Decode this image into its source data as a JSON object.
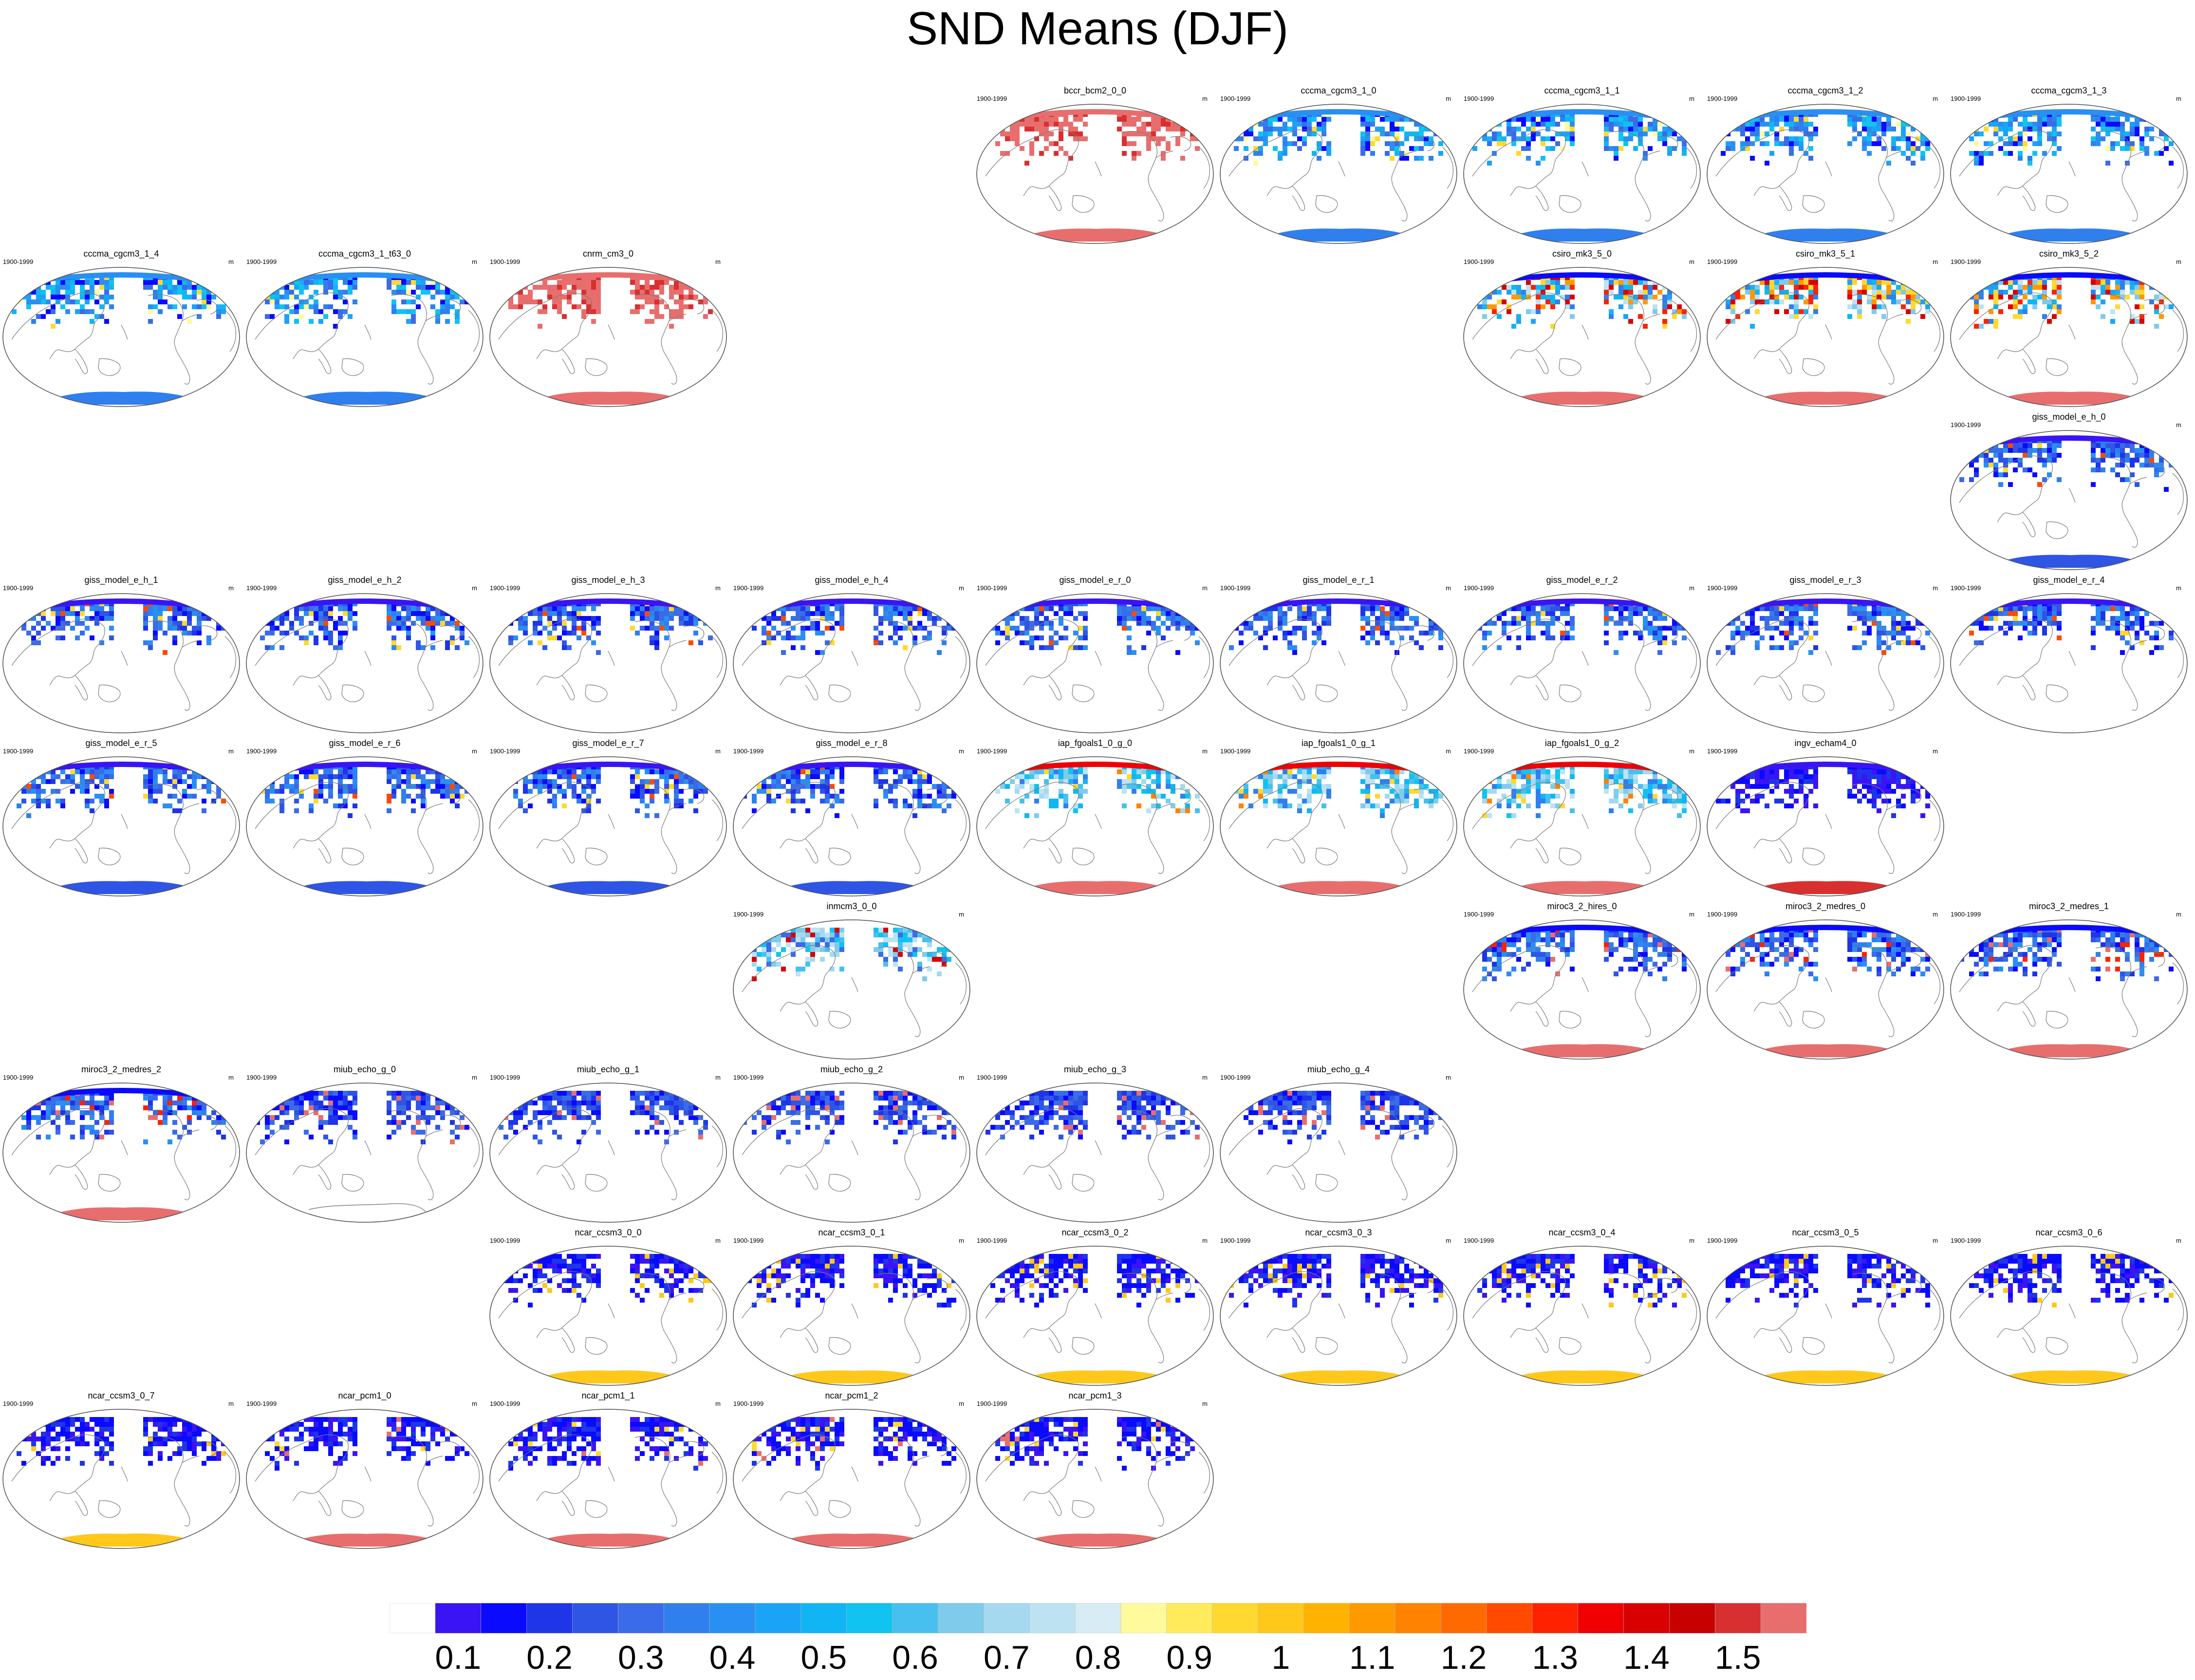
{
  "title": "SND Means (DJF)",
  "period": "1900-1999",
  "units": "m",
  "colorbar": {
    "labels": [
      "0.1",
      "0.2",
      "0.3",
      "0.4",
      "0.5",
      "0.6",
      "0.7",
      "0.8",
      "0.9",
      "1",
      "1.1",
      "1.2",
      "1.3",
      "1.4",
      "1.5"
    ],
    "colors": [
      "#ffffff",
      "#3a14f5",
      "#0a0aff",
      "#1e35e8",
      "#2f55e5",
      "#3a6be8",
      "#2f80ee",
      "#2a8ff3",
      "#1ba3f7",
      "#12b5f4",
      "#10c3f0",
      "#48c0ef",
      "#7fcbeb",
      "#a5d9f0",
      "#bde3f3",
      "#d8ecf6",
      "#fffa9c",
      "#ffeb5c",
      "#ffd930",
      "#ffc81a",
      "#ffb300",
      "#ff9900",
      "#ff8200",
      "#ff6a00",
      "#ff4a00",
      "#ff2200",
      "#f00000",
      "#d80000",
      "#c70000",
      "#d83030",
      "#e86e6e"
    ]
  },
  "panels": [
    {
      "name": "bccr_bcm2_0_0",
      "row": 0,
      "col": 4,
      "style": "salmon"
    },
    {
      "name": "cccma_cgcm3_1_0",
      "row": 0,
      "col": 5,
      "style": "blue-light"
    },
    {
      "name": "cccma_cgcm3_1_1",
      "row": 0,
      "col": 6,
      "style": "blue-light"
    },
    {
      "name": "cccma_cgcm3_1_2",
      "row": 0,
      "col": 7,
      "style": "blue-light"
    },
    {
      "name": "cccma_cgcm3_1_3",
      "row": 0,
      "col": 8,
      "style": "blue-light"
    },
    {
      "name": "cccma_cgcm3_1_4",
      "row": 1,
      "col": 0,
      "style": "blue-light"
    },
    {
      "name": "cccma_cgcm3_1_t63_0",
      "row": 1,
      "col": 1,
      "style": "blue-light"
    },
    {
      "name": "cnrm_cm3_0",
      "row": 1,
      "col": 2,
      "style": "salmon"
    },
    {
      "name": "csiro_mk3_5_0",
      "row": 1,
      "col": 6,
      "style": "multi"
    },
    {
      "name": "csiro_mk3_5_1",
      "row": 1,
      "col": 7,
      "style": "multi"
    },
    {
      "name": "csiro_mk3_5_2",
      "row": 1,
      "col": 8,
      "style": "multi"
    },
    {
      "name": "giss_model_e_h_0",
      "row": 2,
      "col": 8,
      "style": "giss"
    },
    {
      "name": "giss_model_e_h_1",
      "row": 3,
      "col": 0,
      "style": "giss-noant"
    },
    {
      "name": "giss_model_e_h_2",
      "row": 3,
      "col": 1,
      "style": "giss-noant"
    },
    {
      "name": "giss_model_e_h_3",
      "row": 3,
      "col": 2,
      "style": "giss-noant"
    },
    {
      "name": "giss_model_e_h_4",
      "row": 3,
      "col": 3,
      "style": "giss-noant"
    },
    {
      "name": "giss_model_e_r_0",
      "row": 3,
      "col": 4,
      "style": "giss-noant"
    },
    {
      "name": "giss_model_e_r_1",
      "row": 3,
      "col": 5,
      "style": "giss-noant"
    },
    {
      "name": "giss_model_e_r_2",
      "row": 3,
      "col": 6,
      "style": "giss-noant"
    },
    {
      "name": "giss_model_e_r_3",
      "row": 3,
      "col": 7,
      "style": "giss-noant"
    },
    {
      "name": "giss_model_e_r_4",
      "row": 3,
      "col": 8,
      "style": "giss-noant"
    },
    {
      "name": "giss_model_e_r_5",
      "row": 4,
      "col": 0,
      "style": "giss"
    },
    {
      "name": "giss_model_e_r_6",
      "row": 4,
      "col": 1,
      "style": "giss"
    },
    {
      "name": "giss_model_e_r_7",
      "row": 4,
      "col": 2,
      "style": "giss"
    },
    {
      "name": "giss_model_e_r_8",
      "row": 4,
      "col": 3,
      "style": "giss"
    },
    {
      "name": "iap_fgoals1_0_g_0",
      "row": 4,
      "col": 4,
      "style": "iap"
    },
    {
      "name": "iap_fgoals1_0_g_1",
      "row": 4,
      "col": 5,
      "style": "iap"
    },
    {
      "name": "iap_fgoals1_0_g_2",
      "row": 4,
      "col": 6,
      "style": "iap"
    },
    {
      "name": "ingv_echam4_0",
      "row": 4,
      "col": 7,
      "style": "deep-salmon"
    },
    {
      "name": "inmcm3_0_0",
      "row": 5,
      "col": 3,
      "style": "inm"
    },
    {
      "name": "miroc3_2_hires_0",
      "row": 5,
      "col": 6,
      "style": "miroc"
    },
    {
      "name": "miroc3_2_medres_0",
      "row": 5,
      "col": 7,
      "style": "miroc"
    },
    {
      "name": "miroc3_2_medres_1",
      "row": 5,
      "col": 8,
      "style": "miroc"
    },
    {
      "name": "miroc3_2_medres_2",
      "row": 6,
      "col": 0,
      "style": "miroc"
    },
    {
      "name": "miub_echo_g_0",
      "row": 6,
      "col": 1,
      "style": "miub-empty"
    },
    {
      "name": "miub_echo_g_1",
      "row": 6,
      "col": 2,
      "style": "miub"
    },
    {
      "name": "miub_echo_g_2",
      "row": 6,
      "col": 3,
      "style": "miub"
    },
    {
      "name": "miub_echo_g_3",
      "row": 6,
      "col": 4,
      "style": "miub"
    },
    {
      "name": "miub_echo_g_4",
      "row": 6,
      "col": 5,
      "style": "miub"
    },
    {
      "name": "ncar_ccsm3_0_0",
      "row": 7,
      "col": 2,
      "style": "ncar"
    },
    {
      "name": "ncar_ccsm3_0_1",
      "row": 7,
      "col": 3,
      "style": "ncar"
    },
    {
      "name": "ncar_ccsm3_0_2",
      "row": 7,
      "col": 4,
      "style": "ncar"
    },
    {
      "name": "ncar_ccsm3_0_3",
      "row": 7,
      "col": 5,
      "style": "ncar"
    },
    {
      "name": "ncar_ccsm3_0_4",
      "row": 7,
      "col": 6,
      "style": "ncar"
    },
    {
      "name": "ncar_ccsm3_0_5",
      "row": 7,
      "col": 7,
      "style": "ncar"
    },
    {
      "name": "ncar_ccsm3_0_6",
      "row": 7,
      "col": 8,
      "style": "ncar"
    },
    {
      "name": "ncar_ccsm3_0_7",
      "row": 8,
      "col": 0,
      "style": "ncar"
    },
    {
      "name": "ncar_pcm1_0",
      "row": 8,
      "col": 1,
      "style": "pcm"
    },
    {
      "name": "ncar_pcm1_1",
      "row": 8,
      "col": 2,
      "style": "pcm"
    },
    {
      "name": "ncar_pcm1_2",
      "row": 8,
      "col": 3,
      "style": "pcm"
    },
    {
      "name": "ncar_pcm1_3",
      "row": 8,
      "col": 4,
      "style": "pcm"
    }
  ]
}
